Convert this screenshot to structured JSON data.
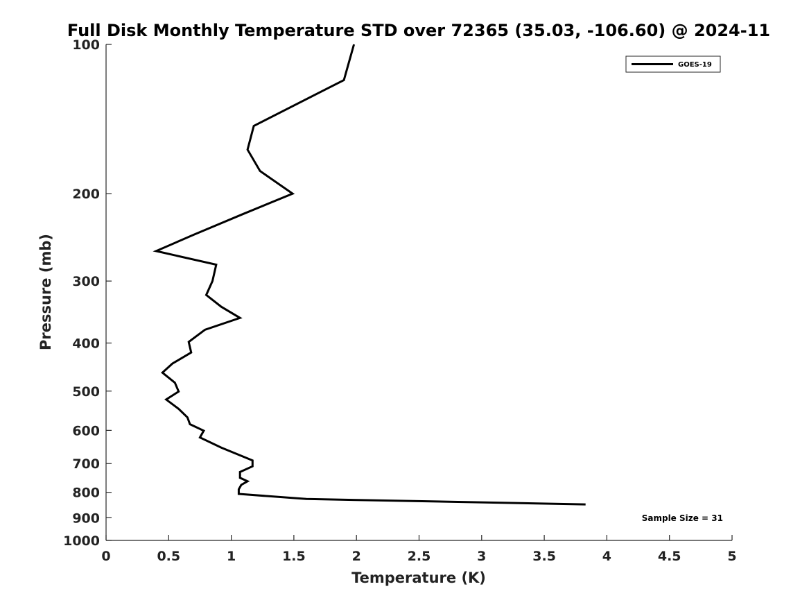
{
  "chart_data": {
    "type": "line",
    "title": "Full Disk Monthly Temperature STD over 72365 (35.03, -106.60) @ 2024-11",
    "xlabel": "Temperature (K)",
    "ylabel": "Pressure (mb)",
    "xlim": [
      0,
      5
    ],
    "ylim": [
      1000,
      100
    ],
    "y_scale": "log",
    "y_reversed": true,
    "x_ticks": [
      0,
      0.5,
      1,
      1.5,
      2,
      2.5,
      3,
      3.5,
      4,
      4.5,
      5
    ],
    "x_tick_labels": [
      "0",
      "0.5",
      "1",
      "1.5",
      "2",
      "2.5",
      "3",
      "3.5",
      "4",
      "4.5",
      "5"
    ],
    "y_ticks": [
      100,
      200,
      300,
      400,
      500,
      600,
      700,
      800,
      900,
      1000
    ],
    "y_tick_labels": [
      "100",
      "200",
      "300",
      "400",
      "500",
      "600",
      "700",
      "800",
      "900",
      "1000"
    ],
    "grid": false,
    "legend_position": "top-right",
    "series": [
      {
        "name": "GOES-19",
        "color": "#000000",
        "points": [
          [
            1.98,
            100
          ],
          [
            1.9,
            118
          ],
          [
            1.18,
            146
          ],
          [
            1.13,
            163
          ],
          [
            1.23,
            180
          ],
          [
            1.49,
            200
          ],
          [
            1.09,
            220
          ],
          [
            0.7,
            242
          ],
          [
            0.4,
            261
          ],
          [
            0.88,
            278
          ],
          [
            0.85,
            300
          ],
          [
            0.8,
            320
          ],
          [
            0.92,
            338
          ],
          [
            1.07,
            356
          ],
          [
            0.79,
            376
          ],
          [
            0.66,
            398
          ],
          [
            0.68,
            418
          ],
          [
            0.53,
            440
          ],
          [
            0.45,
            459
          ],
          [
            0.55,
            481
          ],
          [
            0.58,
            501
          ],
          [
            0.48,
            520
          ],
          [
            0.58,
            543
          ],
          [
            0.65,
            565
          ],
          [
            0.67,
            583
          ],
          [
            0.78,
            601
          ],
          [
            0.75,
            620
          ],
          [
            0.92,
            650
          ],
          [
            1.17,
            690
          ],
          [
            1.17,
            709
          ],
          [
            1.07,
            728
          ],
          [
            1.07,
            748
          ],
          [
            1.13,
            760
          ],
          [
            1.08,
            773
          ],
          [
            1.06,
            789
          ],
          [
            1.06,
            806
          ],
          [
            1.6,
            825
          ],
          [
            3.83,
            846
          ]
        ]
      }
    ],
    "annotations": [
      {
        "text": "Sample Size = 31",
        "position": "bottom-right"
      }
    ]
  }
}
